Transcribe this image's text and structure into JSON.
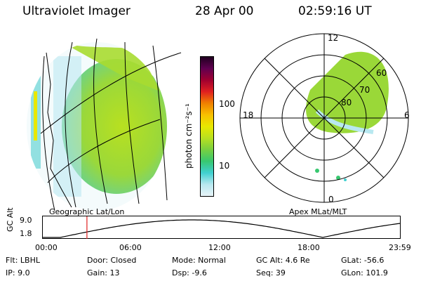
{
  "header": {
    "title": "Ultraviolet Imager",
    "date": "28 Apr 00",
    "time": "02:59:16 UT"
  },
  "colorbar": {
    "unit_label": "photon cm⁻²s⁻¹",
    "ticks": [
      "100",
      "10"
    ],
    "colors": [
      "#e8f4f8",
      "#b8e8f0",
      "#40d0d0",
      "#38c870",
      "#78d040",
      "#b8e020",
      "#e8e800",
      "#f8c000",
      "#f08000",
      "#e02020",
      "#a00030",
      "#600050",
      "#200020"
    ]
  },
  "geo_panel": {
    "label": "Geographic Lat/Lon"
  },
  "polar_panel": {
    "label": "Apex MLat/MLT",
    "mlt_labels": {
      "top": "12",
      "left": "18",
      "right": "6",
      "bottom": "0"
    },
    "lat_labels": [
      "60",
      "70",
      "80"
    ]
  },
  "timeline": {
    "ylabel": "GC Alt",
    "yticks": [
      "9.0",
      "1.8"
    ],
    "xticks": [
      "00:00",
      "06:00",
      "12:00",
      "18:00",
      "23:59"
    ],
    "marker_time": "02:59"
  },
  "info": {
    "row1": {
      "flt": "Flt: LBHL",
      "door": "Door: Closed",
      "mode": "Mode: Normal",
      "gc_alt": "GC Alt: 4.6 Re",
      "glat": "GLat: -56.6"
    },
    "row2": {
      "ip": "IP: 9.0",
      "gain": "Gain: 13",
      "dsp": "Dsp: -9.6",
      "seq": "Seq: 39",
      "glon": "GLon: 101.9"
    }
  }
}
